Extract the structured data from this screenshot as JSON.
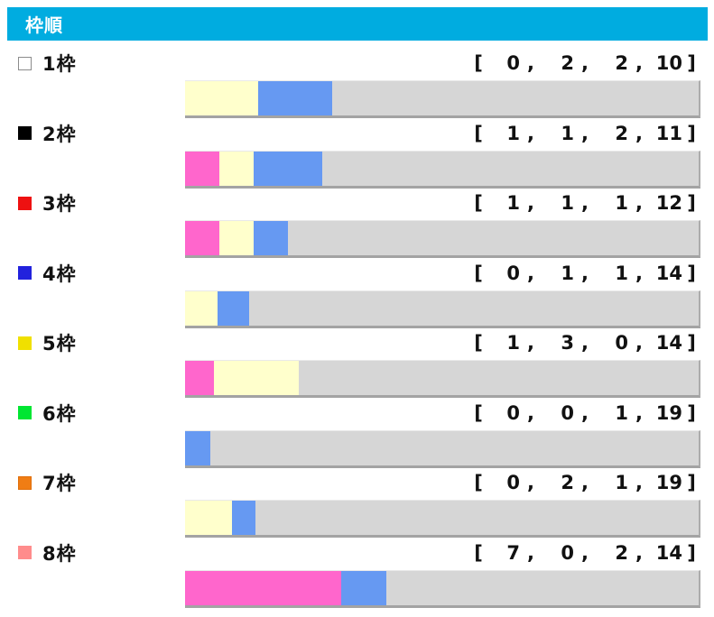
{
  "header": {
    "title": "枠順"
  },
  "format": {
    "open_bracket": "[",
    "close_bracket": "]",
    "comma": ","
  },
  "colors": {
    "header_bg": "#00ACE0",
    "header_text": "#FFFFFF",
    "bar_background": "#D6D6D6",
    "bar_shadow": "#A3A3A3",
    "segment_pink": "#FF66CC",
    "segment_cream": "#FFFFCC",
    "segment_blue": "#6699F2"
  },
  "rows": [
    {
      "label": "1枠",
      "marker_color": "#FFFFFF",
      "marker_border": "#8C8C8C",
      "counts": [
        0,
        2,
        2,
        10
      ]
    },
    {
      "label": "2枠",
      "marker_color": "#000000",
      "marker_border": "#000000",
      "counts": [
        1,
        1,
        2,
        11
      ]
    },
    {
      "label": "3枠",
      "marker_color": "#EE1111",
      "marker_border": "#EE1111",
      "counts": [
        1,
        1,
        1,
        12
      ]
    },
    {
      "label": "4枠",
      "marker_color": "#2222DD",
      "marker_border": "#2222DD",
      "counts": [
        0,
        1,
        1,
        14
      ]
    },
    {
      "label": "5枠",
      "marker_color": "#F0E000",
      "marker_border": "#F0E000",
      "counts": [
        1,
        3,
        0,
        14
      ]
    },
    {
      "label": "6枠",
      "marker_color": "#00E632",
      "marker_border": "#00E632",
      "counts": [
        0,
        0,
        1,
        19
      ]
    },
    {
      "label": "7枠",
      "marker_color": "#F07D14",
      "marker_border": "#E06E0A",
      "counts": [
        0,
        2,
        1,
        19
      ]
    },
    {
      "label": "8枠",
      "marker_color": "#FF8C8C",
      "marker_border": "#FF8C8C",
      "counts": [
        7,
        0,
        2,
        14
      ]
    }
  ],
  "chart_data": {
    "type": "bar",
    "stacked": true,
    "orientation": "horizontal",
    "title": "枠順",
    "categories": [
      "1枠",
      "2枠",
      "3枠",
      "4枠",
      "5枠",
      "6枠",
      "7枠",
      "8枠"
    ],
    "series": [
      {
        "name": "pink",
        "color": "#FF66CC",
        "values": [
          0,
          1,
          1,
          0,
          1,
          0,
          0,
          7
        ]
      },
      {
        "name": "cream",
        "color": "#FFFFCC",
        "values": [
          2,
          1,
          1,
          1,
          3,
          0,
          2,
          0
        ]
      },
      {
        "name": "blue",
        "color": "#6699F2",
        "values": [
          2,
          2,
          1,
          1,
          0,
          1,
          1,
          2
        ]
      },
      {
        "name": "gray",
        "color": "#D6D6D6",
        "values": [
          10,
          11,
          12,
          14,
          14,
          19,
          19,
          14
        ]
      }
    ],
    "value_labels_per_category": [
      [
        0,
        2,
        2,
        10
      ],
      [
        1,
        1,
        2,
        11
      ],
      [
        1,
        1,
        1,
        12
      ],
      [
        0,
        1,
        1,
        14
      ],
      [
        1,
        3,
        0,
        14
      ],
      [
        0,
        0,
        1,
        19
      ],
      [
        0,
        2,
        1,
        19
      ],
      [
        7,
        0,
        2,
        14
      ]
    ],
    "bar_scale": "each bar spans the full width; segment width = count / row total",
    "legend_position": "none",
    "grid": false
  }
}
